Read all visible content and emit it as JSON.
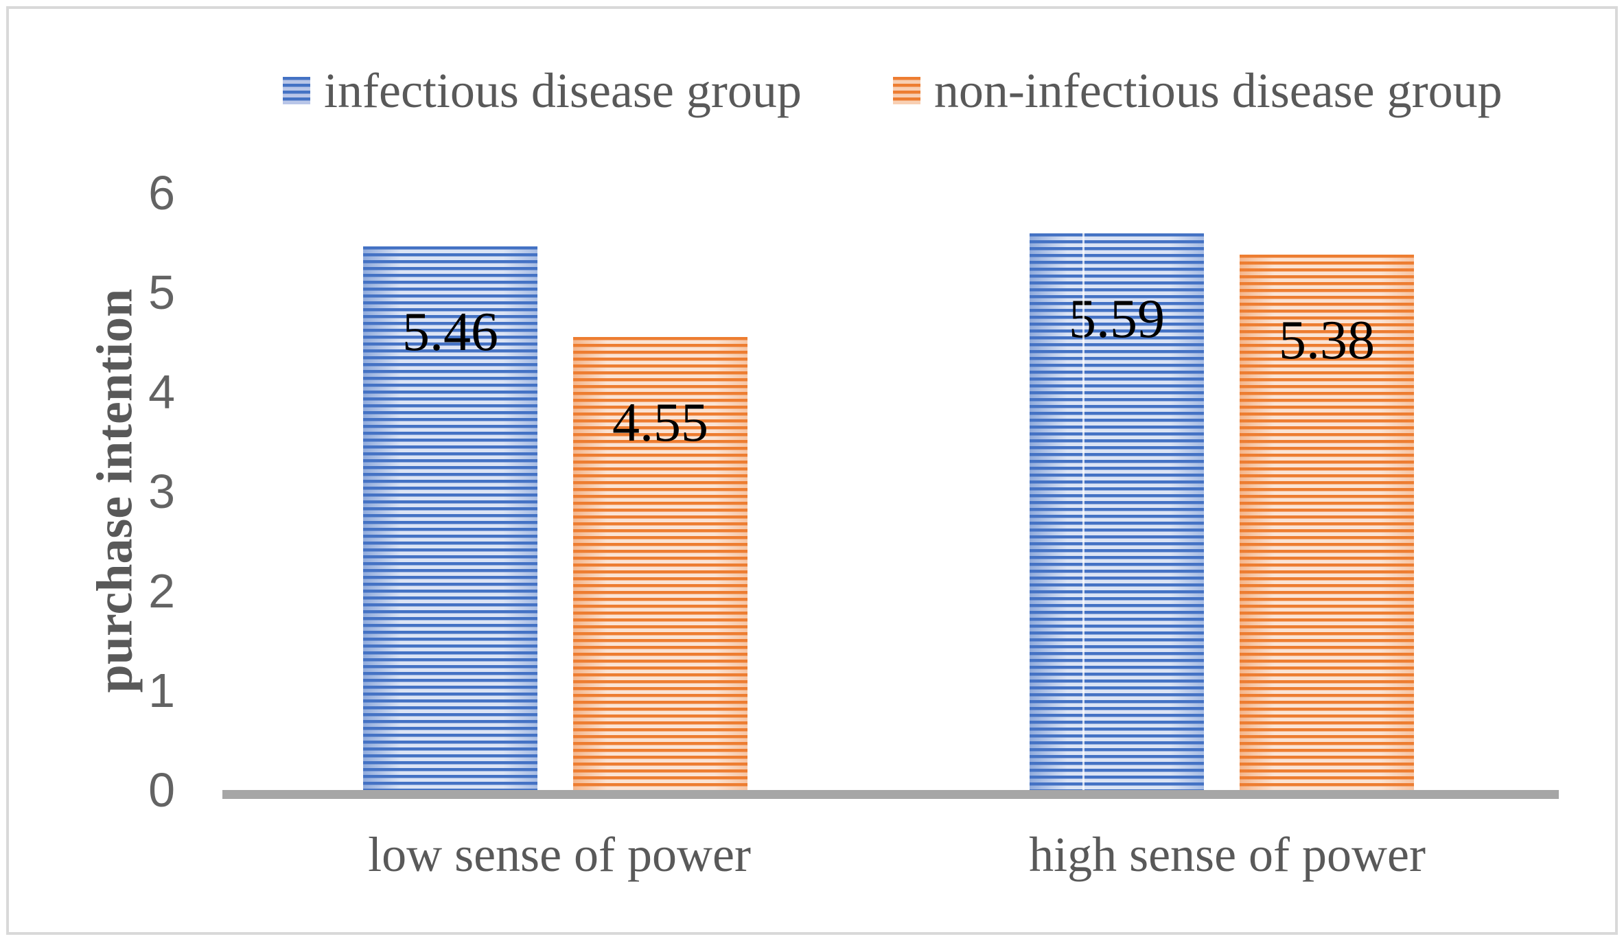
{
  "frame": {
    "background": "#ffffff",
    "border_color": "#d9d9d9"
  },
  "colors": {
    "text": "#595959",
    "tick_text": "#636363",
    "axis_line": "#a6a6a6",
    "data_label": "#000000",
    "series_blue": "#4472C4",
    "series_blue_light": "#dce4f5",
    "series_orange": "#ED7D31",
    "series_orange_light": "#fbe4d5"
  },
  "legend": {
    "items": [
      {
        "label": "infectious disease group",
        "swatch": "striped-blue-square"
      },
      {
        "label": "non-infectious disease group",
        "swatch": "striped-orange-square"
      }
    ]
  },
  "chart_data": {
    "type": "bar",
    "title": "",
    "categories": [
      "low sense of power",
      "high sense of power"
    ],
    "series": [
      {
        "name": "infectious disease group",
        "values": [
          5.46,
          5.59
        ],
        "color": "#4472C4",
        "stripe_light": "#dce4f5"
      },
      {
        "name": "non-infectious disease group",
        "values": [
          4.55,
          5.38
        ],
        "color": "#ED7D31",
        "stripe_light": "#fbe4d5"
      }
    ],
    "data_labels": [
      "5.46",
      "4.55",
      "5.59",
      "5.38"
    ],
    "xlabel": "",
    "ylabel": "purchase intention",
    "ylim": [
      0,
      6
    ],
    "yticks": [
      0,
      1,
      2,
      3,
      4,
      5,
      6
    ],
    "grid": false,
    "legend_position": "top",
    "pattern": "horizontal-stripes",
    "bar_fill_style": "striped"
  }
}
